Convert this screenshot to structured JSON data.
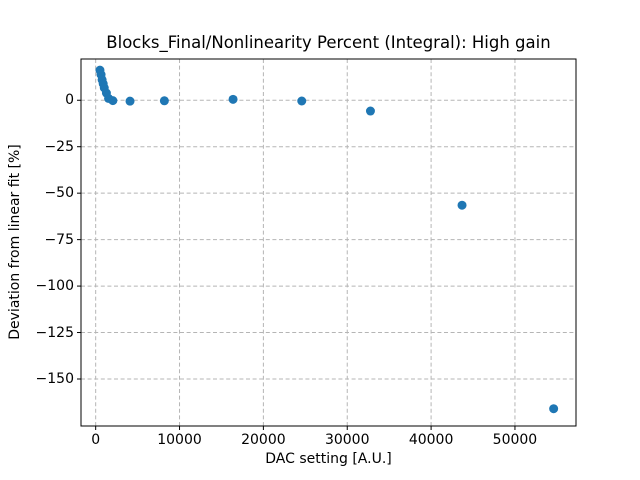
{
  "figure": {
    "background_color": "#ffffff",
    "spine_color": "#000000",
    "grid_color": "#b5b5b5",
    "marker_color": "#1f77b4"
  },
  "chart_data": {
    "type": "scatter",
    "title": "Blocks_Final/Nonlinearity Percent (Integral): High gain",
    "xlabel": "DAC setting [A.U.]",
    "ylabel": "Deviation from linear fit [%]",
    "x": [
      512,
      640,
      768,
      896,
      1024,
      1280,
      1536,
      2048,
      4096,
      8192,
      16384,
      24576,
      32768,
      43690,
      54613
    ],
    "y": [
      16.2,
      13.8,
      11.0,
      8.9,
      6.7,
      3.9,
      1.0,
      -0.2,
      -0.5,
      -0.3,
      0.5,
      -0.4,
      -5.8,
      -56.5,
      -166.0
    ],
    "xticks": [
      0,
      10000,
      20000,
      30000,
      40000,
      50000
    ],
    "yticks": [
      0,
      -25,
      -50,
      -75,
      -100,
      -125,
      -150
    ],
    "xlim": [
      -1750,
      57280
    ],
    "ylim": [
      -175.3,
      22.2
    ],
    "grid": true,
    "grid_linestyle": "dashed",
    "legend": "none",
    "marker": "circle",
    "marker_color": "#1f77b4",
    "marker_diameter_px": 9
  }
}
